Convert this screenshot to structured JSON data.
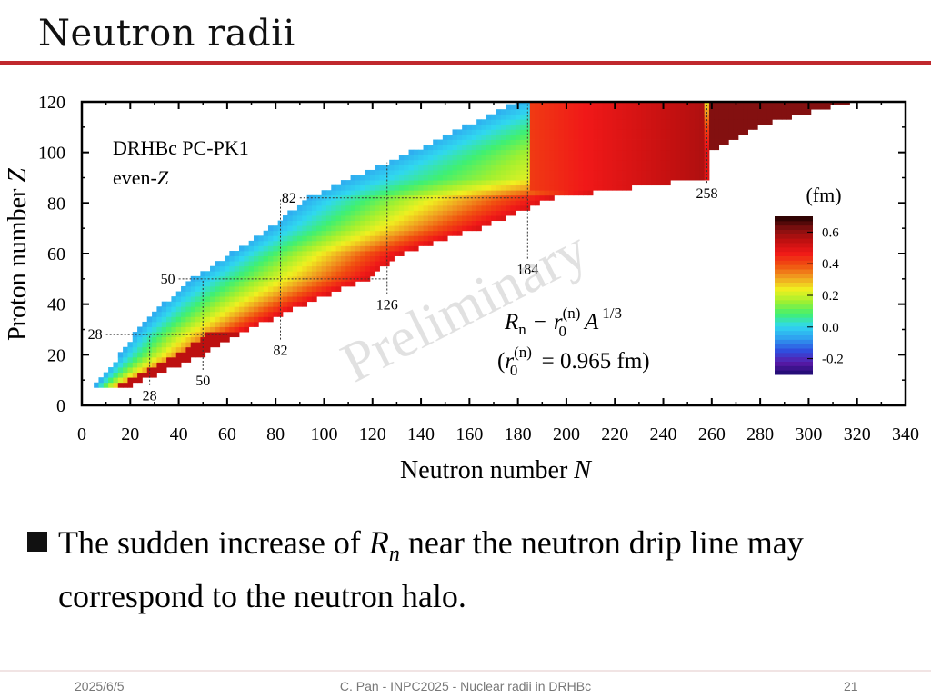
{
  "slide": {
    "title": "Neutron radii",
    "bullet_parts": {
      "before": "The sudden increase of ",
      "var": "R",
      "sub": "n",
      "after_line1": " near the neutron drip line may",
      "line2": "correspond to the neutron halo."
    },
    "footer": {
      "date": "2025/6/5",
      "center": "C. Pan - INPC2025 - Nuclear radii in DRHBc",
      "page": "21"
    }
  },
  "chart_data": {
    "type": "heatmap",
    "xlabel_text": "Neutron number ",
    "xlabel_var": "N",
    "ylabel_text": "Proton number ",
    "ylabel_var": "Z",
    "xlim": [
      0,
      340
    ],
    "ylim": [
      0,
      120
    ],
    "xticks": [
      0,
      20,
      40,
      60,
      80,
      100,
      120,
      140,
      160,
      180,
      200,
      220,
      240,
      260,
      280,
      300,
      320,
      340
    ],
    "yticks": [
      0,
      20,
      40,
      60,
      80,
      100,
      120
    ],
    "model_line1": "DRHBc  PC-PK1",
    "model_line2_prefix": "even-",
    "model_line2_var": "Z",
    "watermark": "Preliminary",
    "quantity_label": "R_n - r_0^(n) A^1/3",
    "param_label": "(r_0^(n) = 0.965 fm)",
    "formula": {
      "R": "R",
      "n_sub": "n",
      "minus": "−",
      "r": "r",
      "zero_sub": "0",
      "n_sup": "(n)",
      "A": "A",
      "exp": "1/3",
      "param_open": "(",
      "param_value": " = 0.965 fm)"
    },
    "colorbar": {
      "unit": "(fm)",
      "min": -0.3,
      "max": 0.7,
      "ticks": [
        {
          "value": 0.6,
          "label": "0.6"
        },
        {
          "value": 0.4,
          "label": "0.4"
        },
        {
          "value": 0.2,
          "label": "0.2"
        },
        {
          "value": 0.0,
          "label": "0.0"
        },
        {
          "value": -0.2,
          "label": "-0.2"
        }
      ],
      "colors": [
        "#1a0a6e",
        "#5a1aa8",
        "#2f4fe0",
        "#2fa0f0",
        "#30d8f0",
        "#40f070",
        "#a0f030",
        "#f0f020",
        "#f0a020",
        "#f05010",
        "#f01818",
        "#c01010",
        "#801010",
        "#200000"
      ]
    },
    "magic_numbers": {
      "neutron": [
        {
          "N": 28,
          "label": "28",
          "z_from": 8,
          "z_to": 28
        },
        {
          "N": 50,
          "label": "50",
          "z_from": 14,
          "z_to": 50
        },
        {
          "N": 82,
          "label": "82",
          "z_from": 26,
          "z_to": 82
        },
        {
          "N": 126,
          "label": "126",
          "z_from": 44,
          "z_to": 96
        },
        {
          "N": 184,
          "label": "184",
          "z_from": 58,
          "z_to": 120
        },
        {
          "N": 258,
          "label": "258",
          "z_from": 88,
          "z_to": 120
        }
      ],
      "proton": [
        {
          "Z": 28,
          "label": "28",
          "n_from": 10,
          "n_to": 60
        },
        {
          "Z": 50,
          "label": "50",
          "n_from": 40,
          "n_to": 126
        },
        {
          "Z": 82,
          "label": "82",
          "n_from": 90,
          "n_to": 184
        }
      ]
    },
    "boundary": [
      {
        "Z": 8,
        "n_min": 6,
        "n_max": 20
      },
      {
        "Z": 20,
        "n_min": 16,
        "n_max": 50
      },
      {
        "Z": 28,
        "n_min": 22,
        "n_max": 64
      },
      {
        "Z": 40,
        "n_min": 34,
        "n_max": 92
      },
      {
        "Z": 50,
        "n_min": 46,
        "n_max": 118
      },
      {
        "Z": 60,
        "n_min": 62,
        "n_max": 132
      },
      {
        "Z": 70,
        "n_min": 78,
        "n_max": 164
      },
      {
        "Z": 82,
        "n_min": 94,
        "n_max": 194
      },
      {
        "Z": 90,
        "n_min": 112,
        "n_max": 258
      },
      {
        "Z": 100,
        "n_min": 136,
        "n_max": 258
      },
      {
        "Z": 110,
        "n_min": 158,
        "n_max": 278
      },
      {
        "Z": 120,
        "n_min": 180,
        "n_max": 316
      }
    ]
  }
}
